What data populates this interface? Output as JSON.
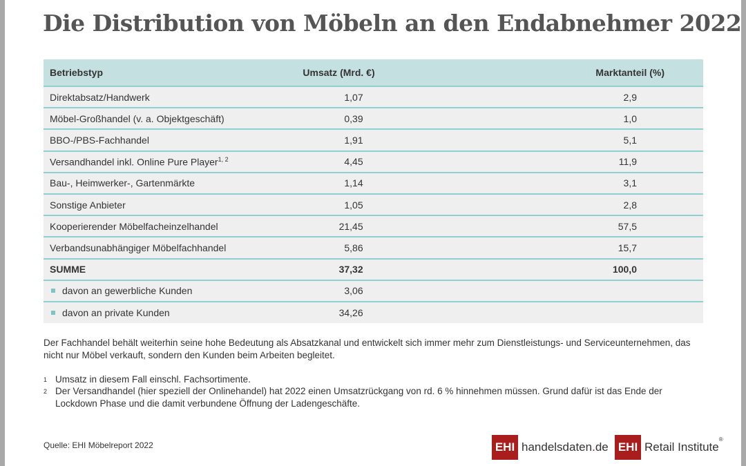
{
  "title": "Die Distribution von Möbeln an den Endabnehmer 2022",
  "table": {
    "headers": [
      "Betriebstyp",
      "Umsatz (Mrd. €)",
      "Marktanteil (%)"
    ],
    "rows": [
      {
        "label": "Direktabsatz/Handwerk",
        "umsatz": "1,07",
        "anteil": "2,9"
      },
      {
        "label": "Möbel-Großhandel (v. a. Objektgeschäft)",
        "umsatz": "0,39",
        "anteil": "1,0"
      },
      {
        "label": "BBO-/PBS-Fachhandel",
        "umsatz": "1,91",
        "anteil": "5,1"
      },
      {
        "label": "Versandhandel inkl. Online Pure Player",
        "sup": "1, 2",
        "umsatz": "4,45",
        "anteil": "11,9"
      },
      {
        "label": "Bau-, Heimwerker-, Gartenmärkte",
        "umsatz": "1,14",
        "anteil": "3,1"
      },
      {
        "label": "Sonstige Anbieter",
        "umsatz": "1,05",
        "anteil": "2,8"
      },
      {
        "label": "Kooperierender Möbelfacheinzelhandel",
        "umsatz": "21,45",
        "anteil": "57,5"
      },
      {
        "label": "Verbandsunabhängiger Möbelfachhandel",
        "umsatz": "5,86",
        "anteil": "15,7"
      }
    ],
    "sum": {
      "label": "SUMME",
      "umsatz": "37,32",
      "anteil": "100,0"
    },
    "sub": [
      {
        "label": "davon an gewerbliche Kunden",
        "umsatz": "3,06"
      },
      {
        "label": "davon an private Kunden",
        "umsatz": "34,26"
      }
    ]
  },
  "description": "Der Fachhandel behält weiterhin seine hohe Bedeutung als Absatzkanal und entwickelt sich immer mehr zum Dienstleistungs- und Serviceunternehmen, das nicht nur Möbel verkauft, sondern den Kunden beim Arbeiten begleitet.",
  "footnotes": [
    {
      "n": "1",
      "text": "Umsatz in diesem Fall einschl. Fachsortimente."
    },
    {
      "n": "2",
      "text": "Der Versandhandel (hier speziell der Onlinehandel) hat 2022 einen Umsatzrückgang von rd. 6 % hinnehmen müssen. Grund dafür ist das Ende der",
      "text2": "Lockdown Phase und die damit verbundene Öffnung der Ladengeschäfte."
    }
  ],
  "source": "Quelle: EHI Möbelreport 2022",
  "logos": {
    "ehi": "EHI",
    "handelsdaten_a": "handelsdaten",
    "handelsdaten_dot": ".",
    "handelsdaten_b": "de",
    "retail": "Retail Institute",
    "reg": "®"
  },
  "colors": {
    "header_bg": "#c5e0e0",
    "row_bg": "#efefef",
    "divider": "#8fcfcf",
    "brand_red": "#a91d1d"
  }
}
